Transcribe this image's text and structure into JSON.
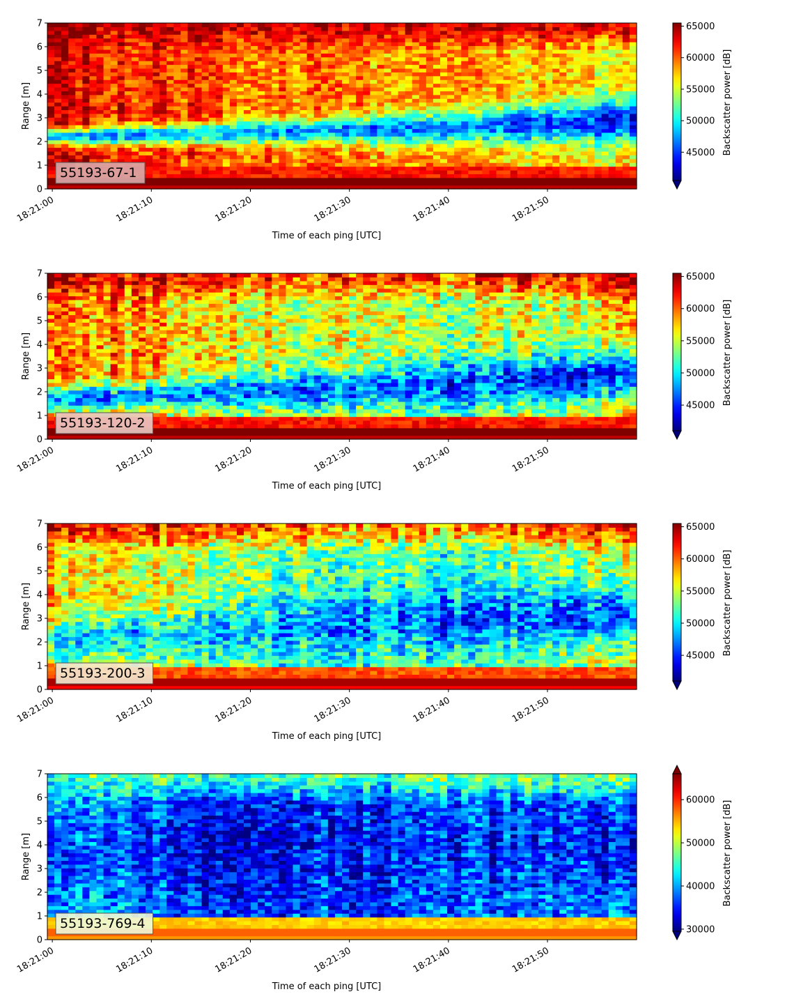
{
  "figure": {
    "x_label": "Time of each ping [UTC]",
    "y_label": "Range [m]",
    "colorbar_label": "Backscatter power [dB]",
    "colormap": "jet",
    "colormap_stops": [
      "#00007f",
      "#0000ff",
      "#0080ff",
      "#00ffff",
      "#80ff80",
      "#ffff00",
      "#ff8000",
      "#ff0000",
      "#7f0000"
    ]
  },
  "chart_data": [
    {
      "type": "heatmap",
      "panel_label": "55193-67-1",
      "label_box_color": "#d9a7a7",
      "xlabel": "Time of each ping [UTC]",
      "ylabel": "Range [m]",
      "x_range_seconds": [
        -0.5,
        59
      ],
      "x_ticks": [
        "18:21:00",
        "18:21:10",
        "18:21:20",
        "18:21:30",
        "18:21:40",
        "18:21:50"
      ],
      "ylim": [
        0,
        7
      ],
      "y_ticks": [
        0,
        1,
        2,
        3,
        4,
        5,
        6,
        7
      ],
      "colorbar": {
        "label": "Backscatter power [dB]",
        "range": [
          40500,
          65500
        ],
        "ticks": [
          45000,
          50000,
          55000,
          60000,
          65000
        ],
        "extend": "min"
      },
      "profile": {
        "times": [
          0,
          20,
          40,
          59
        ],
        "low_center_m": [
          2.2,
          2.4,
          2.6,
          2.9
        ],
        "low_halfwidth_m": [
          0.35,
          0.45,
          0.7,
          0.9
        ],
        "low_value": [
          47500,
          48000,
          46500,
          43500
        ],
        "upper_value": [
          63000,
          60000,
          58000,
          56000
        ],
        "upper_top_value": [
          64500,
          64000,
          63000,
          63000
        ],
        "bottom_value": 66000,
        "noise": 3500
      }
    },
    {
      "type": "heatmap",
      "panel_label": "55193-120-2",
      "label_box_color": "#e8c6c0",
      "xlabel": "Time of each ping [UTC]",
      "ylabel": "Range [m]",
      "x_range_seconds": [
        -0.5,
        59
      ],
      "x_ticks": [
        "18:21:00",
        "18:21:10",
        "18:21:20",
        "18:21:30",
        "18:21:40",
        "18:21:50"
      ],
      "ylim": [
        0,
        7
      ],
      "y_ticks": [
        0,
        1,
        2,
        3,
        4,
        5,
        6,
        7
      ],
      "colorbar": {
        "label": "Backscatter power [dB]",
        "range": [
          41000,
          65500
        ],
        "ticks": [
          45000,
          50000,
          55000,
          60000,
          65000
        ],
        "extend": "min"
      },
      "profile": {
        "times": [
          0,
          20,
          40,
          59
        ],
        "low_center_m": [
          1.7,
          2.0,
          2.3,
          2.8
        ],
        "low_halfwidth_m": [
          0.5,
          0.7,
          1.0,
          1.1
        ],
        "low_value": [
          47000,
          48000,
          46000,
          44500
        ],
        "upper_value": [
          60000,
          56500,
          54000,
          57500
        ],
        "upper_top_value": [
          64500,
          62000,
          60500,
          64000
        ],
        "bottom_value": 66000,
        "noise": 4500
      }
    },
    {
      "type": "heatmap",
      "panel_label": "55193-200-3",
      "label_box_color": "#f2e6cc",
      "xlabel": "Time of each ping [UTC]",
      "ylabel": "Range [m]",
      "x_range_seconds": [
        -0.5,
        59
      ],
      "x_ticks": [
        "18:21:00",
        "18:21:10",
        "18:21:20",
        "18:21:30",
        "18:21:40",
        "18:21:50"
      ],
      "ylim": [
        0,
        7
      ],
      "y_ticks": [
        0,
        1,
        2,
        3,
        4,
        5,
        6,
        7
      ],
      "colorbar": {
        "label": "Backscatter power [dB]",
        "range": [
          41000,
          65500
        ],
        "ticks": [
          45000,
          50000,
          55000,
          60000,
          65000
        ],
        "extend": "min"
      },
      "profile": {
        "times": [
          0,
          20,
          40,
          59
        ],
        "low_center_m": [
          2.0,
          2.5,
          3.0,
          3.2
        ],
        "low_halfwidth_m": [
          0.8,
          1.2,
          1.3,
          1.2
        ],
        "low_value": [
          49500,
          48500,
          46500,
          45500
        ],
        "upper_value": [
          57000,
          53000,
          52000,
          55000
        ],
        "upper_top_value": [
          63000,
          60000,
          59000,
          62000
        ],
        "bottom_value": 64500,
        "noise": 4500
      }
    },
    {
      "type": "heatmap",
      "panel_label": "55193-769-4",
      "label_box_color": "#eef6d6",
      "xlabel": "Time of each ping [UTC]",
      "ylabel": "Range [m]",
      "x_range_seconds": [
        -0.5,
        59
      ],
      "x_ticks": [
        "18:21:00",
        "18:21:10",
        "18:21:20",
        "18:21:30",
        "18:21:40",
        "18:21:50"
      ],
      "ylim": [
        0,
        7
      ],
      "y_ticks": [
        0,
        1,
        2,
        3,
        4,
        5,
        6,
        7
      ],
      "colorbar": {
        "label": "Backscatter power [dB]",
        "range": [
          29500,
          66000
        ],
        "ticks": [
          30000,
          40000,
          50000,
          60000
        ],
        "extend": "both"
      },
      "profile": {
        "times": [
          0,
          20,
          40,
          59
        ],
        "low_center_m": [
          3.5,
          4.0,
          4.0,
          4.0
        ],
        "low_halfwidth_m": [
          2.0,
          2.5,
          2.5,
          2.5
        ],
        "low_value": [
          38000,
          33000,
          36000,
          35000
        ],
        "upper_value": [
          42000,
          36000,
          38000,
          40000
        ],
        "upper_top_value": [
          46000,
          45000,
          47000,
          47000
        ],
        "bottom_value": 58000,
        "noise": 6000
      }
    }
  ]
}
